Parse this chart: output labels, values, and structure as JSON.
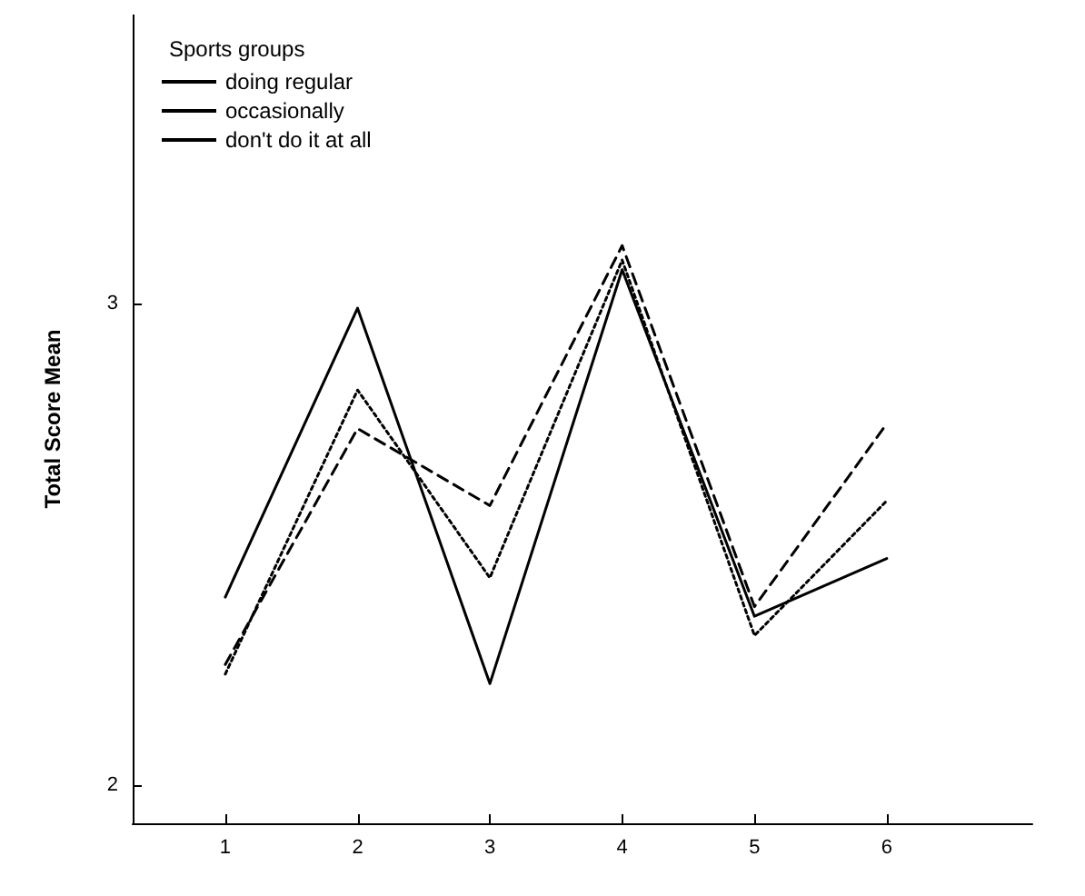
{
  "chart_data": {
    "type": "line",
    "ylabel": "Total Score Mean",
    "legend_title": "Sports groups",
    "legend": "top left",
    "grid": false,
    "marker": "none",
    "x": [
      1,
      2,
      3,
      4,
      5,
      6
    ],
    "xlim": [
      0.3,
      7.1
    ],
    "xticks": [
      1,
      2,
      3,
      4,
      5,
      6
    ],
    "ylim": [
      1.92,
      3.6
    ],
    "yticks": [
      2,
      3
    ],
    "series": [
      {
        "name": "doing regular",
        "color": "#000000",
        "line_style": "solid",
        "values": [
          2.39,
          2.99,
          2.21,
          3.07,
          2.35,
          2.47
        ]
      },
      {
        "name": "occasionally",
        "color": "#000000",
        "line_style": "dotted",
        "values": [
          2.23,
          2.82,
          2.43,
          3.09,
          2.31,
          2.59
        ]
      },
      {
        "name": "don't do it at all",
        "color": "#000000",
        "line_style": "dashed",
        "values": [
          2.25,
          2.74,
          2.58,
          3.12,
          2.37,
          2.75
        ]
      }
    ]
  }
}
